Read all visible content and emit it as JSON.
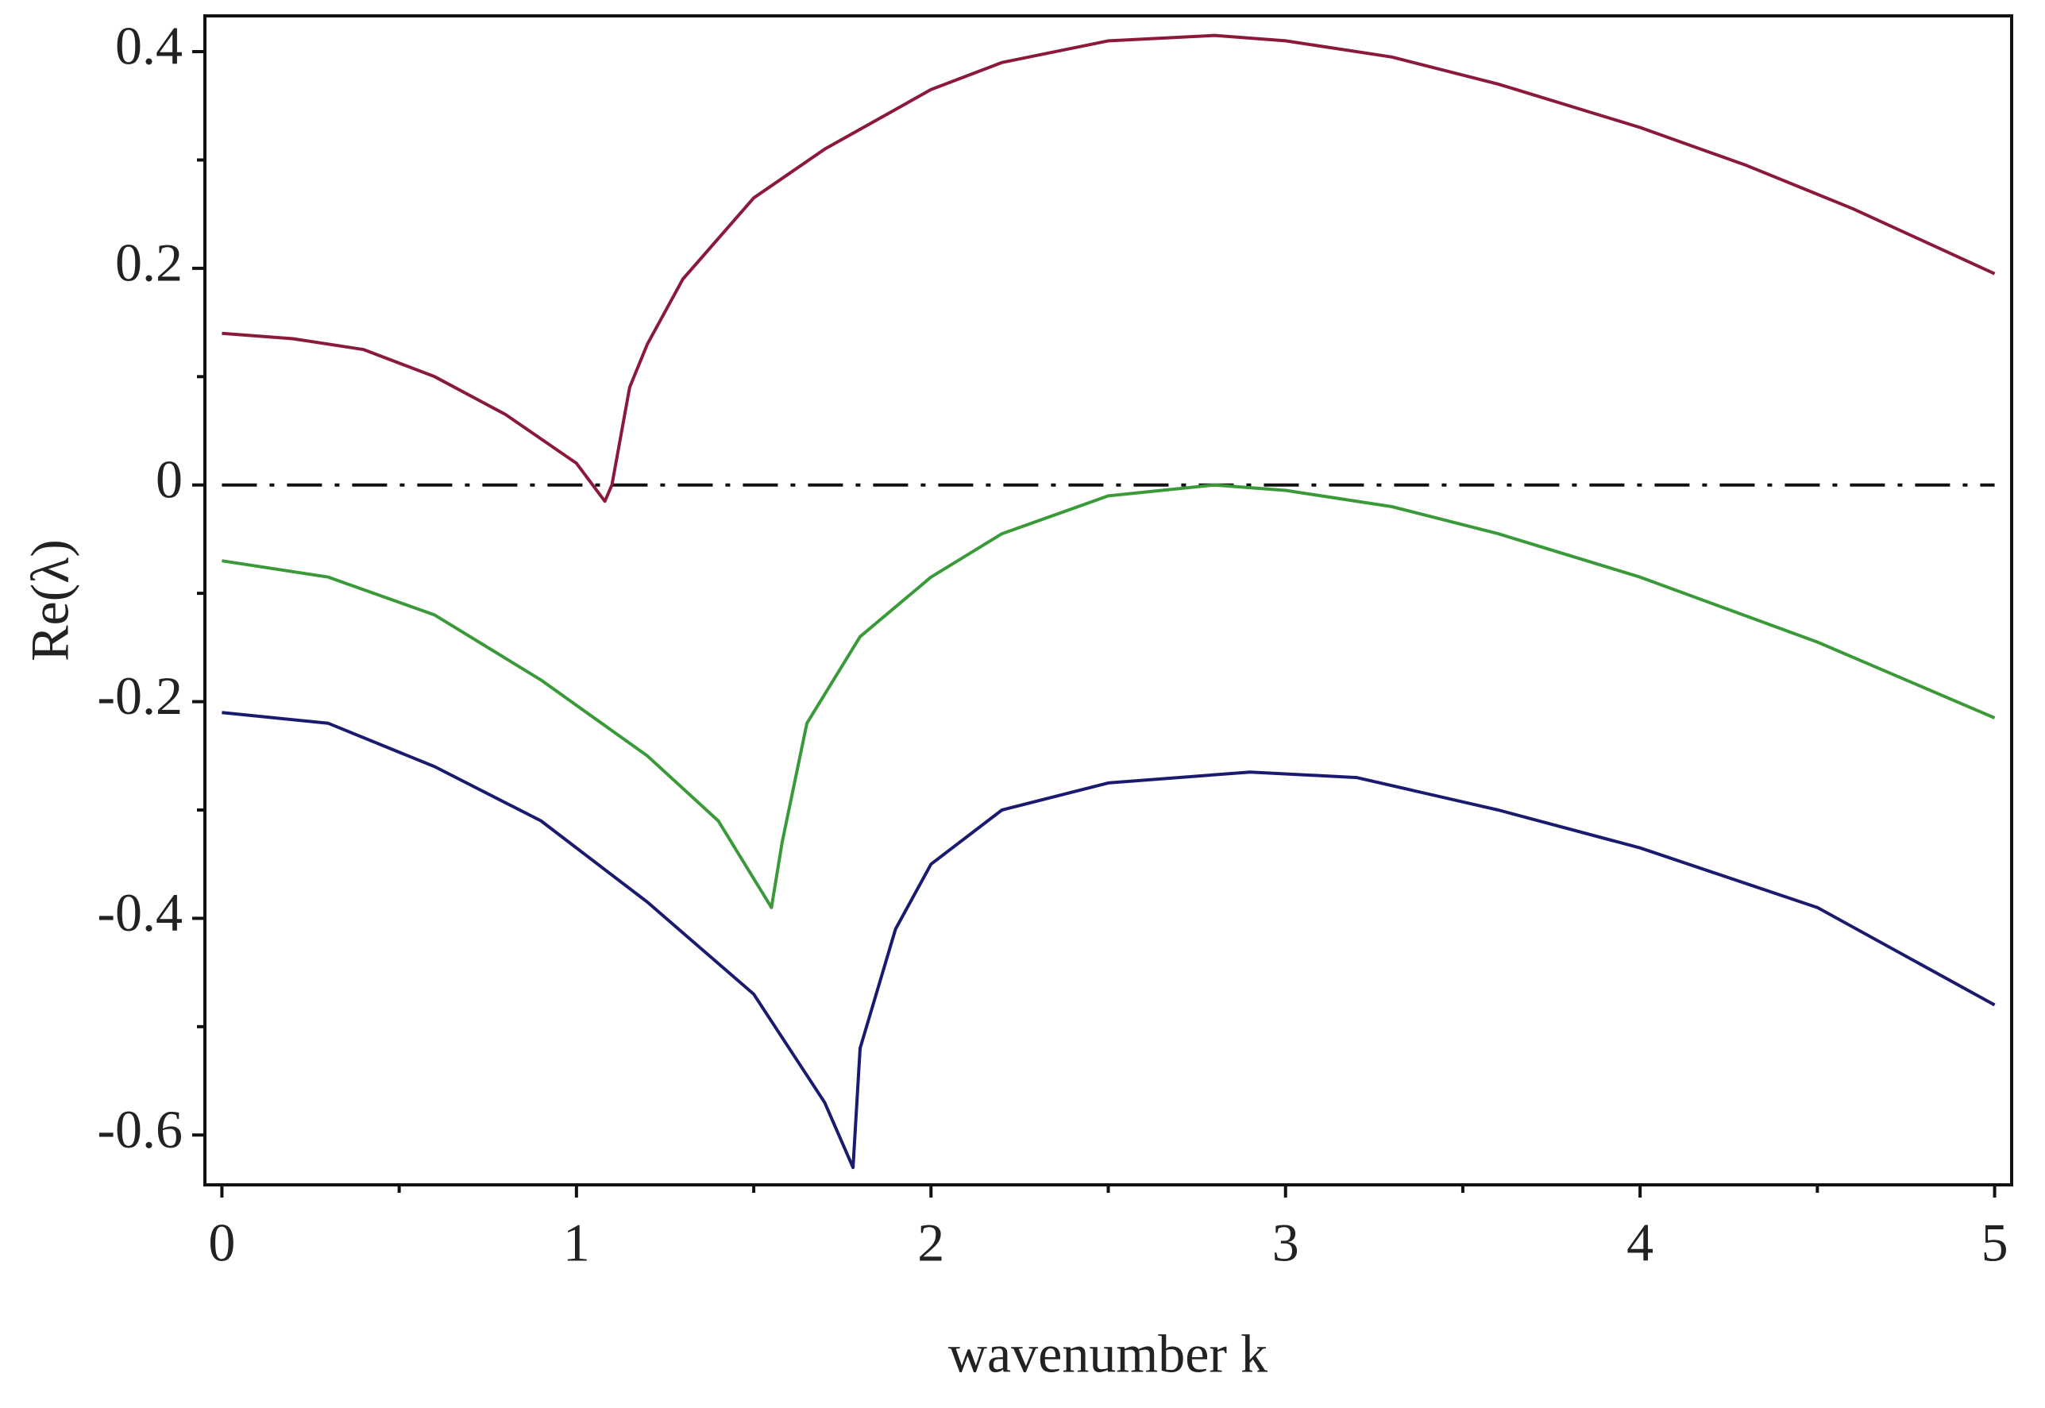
{
  "chart_data": {
    "type": "line",
    "x_label": "wavenumber k",
    "y_label": "Re(λ)",
    "xlim": [
      -0.048,
      5.048
    ],
    "ylim": [
      -0.646,
      0.433
    ],
    "xticks": [
      0,
      1,
      2,
      3,
      4,
      5
    ],
    "xminor_ticks": [
      0.5,
      1.5,
      2.5,
      3.5,
      4.5
    ],
    "yticks": [
      {
        "value": -0.6,
        "label": "-0.6"
      },
      {
        "value": -0.4,
        "label": "-0.4"
      },
      {
        "value": -0.2,
        "label": "-0.2"
      },
      0,
      0.2,
      0.4
    ],
    "yminor_ticks": [
      -0.5,
      -0.3,
      -0.1,
      0.1,
      0.3
    ],
    "reference_line": 0,
    "grid": false,
    "series": [
      {
        "color": "#8b1a3a",
        "x": [
          0,
          0.2,
          0.4,
          0.6,
          0.8,
          1.0,
          1.08,
          1.1,
          1.15,
          1.2,
          1.3,
          1.5,
          1.7,
          2.0,
          2.2,
          2.5,
          2.8,
          3.0,
          3.3,
          3.6,
          4.0,
          4.3,
          4.6,
          5.0
        ],
        "values": [
          0.14,
          0.135,
          0.125,
          0.1,
          0.065,
          0.02,
          -0.015,
          0.0,
          0.09,
          0.13,
          0.19,
          0.265,
          0.31,
          0.365,
          0.39,
          0.41,
          0.415,
          0.41,
          0.395,
          0.37,
          0.33,
          0.295,
          0.255,
          0.195
        ]
      },
      {
        "color": "#3a9a3a",
        "x": [
          0,
          0.3,
          0.6,
          0.9,
          1.2,
          1.4,
          1.55,
          1.58,
          1.65,
          1.8,
          2.0,
          2.2,
          2.5,
          2.8,
          3.0,
          3.3,
          3.6,
          4.0,
          4.5,
          5.0
        ],
        "values": [
          -0.07,
          -0.085,
          -0.12,
          -0.18,
          -0.25,
          -0.31,
          -0.39,
          -0.33,
          -0.22,
          -0.14,
          -0.085,
          -0.045,
          -0.01,
          0.0,
          -0.005,
          -0.02,
          -0.045,
          -0.085,
          -0.145,
          -0.215
        ]
      },
      {
        "color": "#1a1a6e",
        "x": [
          0,
          0.3,
          0.6,
          0.9,
          1.2,
          1.5,
          1.7,
          1.78,
          1.8,
          1.9,
          2.0,
          2.2,
          2.5,
          2.9,
          3.2,
          3.6,
          4.0,
          4.5,
          5.0
        ],
        "values": [
          -0.21,
          -0.22,
          -0.26,
          -0.31,
          -0.385,
          -0.47,
          -0.57,
          -0.63,
          -0.52,
          -0.41,
          -0.35,
          -0.3,
          -0.275,
          -0.265,
          -0.27,
          -0.3,
          -0.335,
          -0.39,
          -0.48
        ]
      }
    ]
  }
}
